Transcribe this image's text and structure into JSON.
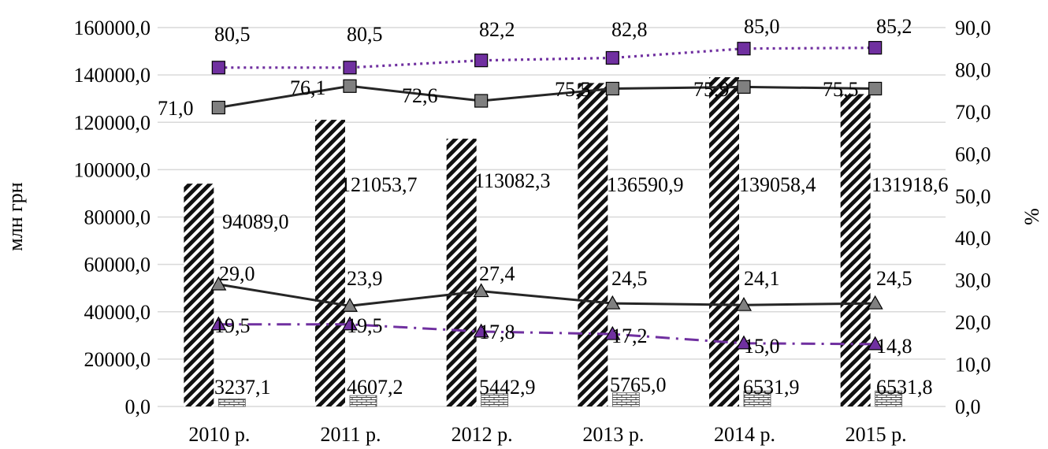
{
  "chart_data": {
    "type": "bar",
    "categories": [
      "2010 р.",
      "2011 р.",
      "2012 р.",
      "2013 р.",
      "2014 р.",
      "2015 р."
    ],
    "y_left": {
      "label": "млн грн",
      "ylim": [
        0,
        160000
      ],
      "ticks": [
        "0,0",
        "20000,0",
        "40000,0",
        "60000,0",
        "80000,0",
        "100000,0",
        "120000,0",
        "140000,0",
        "160000,0"
      ]
    },
    "y_right": {
      "label": "%",
      "ylim": [
        0,
        90
      ],
      "ticks": [
        "0,0",
        "10,0",
        "20,0",
        "30,0",
        "40,0",
        "50,0",
        "60,0",
        "70,0",
        "80,0",
        "90,0"
      ]
    },
    "bars": [
      {
        "axis": "left",
        "pattern": "diagonal-hatch",
        "values": [
          94089.0,
          121053.7,
          113082.3,
          136590.9,
          139058.4,
          131918.6
        ],
        "labels": [
          "94089,0",
          "121053,7",
          "113082,3",
          "136590,9",
          "139058,4",
          "131918,6"
        ]
      },
      {
        "axis": "left",
        "pattern": "brick",
        "values": [
          3237.1,
          4607.2,
          5442.9,
          5765.0,
          6531.9,
          6531.8
        ],
        "labels": [
          "3237,1",
          "4607,2",
          "5442,9",
          "5765,0",
          "6531,9",
          "6531,8"
        ]
      }
    ],
    "lines": [
      {
        "axis": "right",
        "style": "dotted",
        "color": "#7030a0",
        "marker": "square",
        "values": [
          80.5,
          80.5,
          82.2,
          82.8,
          85.0,
          85.2
        ],
        "labels": [
          "80,5",
          "80,5",
          "82,2",
          "82,8",
          "85,0",
          "85,2"
        ]
      },
      {
        "axis": "right",
        "style": "solid",
        "color": "#262626",
        "marker": "square",
        "values": [
          71.0,
          76.1,
          72.6,
          75.5,
          75.9,
          75.5
        ],
        "labels": [
          "71,0",
          "76,1",
          "72,6",
          "75,5",
          "75,9",
          "75,5"
        ]
      },
      {
        "axis": "right",
        "style": "solid",
        "color": "#262626",
        "marker": "triangle",
        "values": [
          29.0,
          23.9,
          27.4,
          24.5,
          24.1,
          24.5
        ],
        "labels": [
          "29,0",
          "23,9",
          "27,4",
          "24,5",
          "24,1",
          "24,5"
        ]
      },
      {
        "axis": "right",
        "style": "dash-dot",
        "color": "#7030a0",
        "marker": "triangle",
        "values": [
          19.5,
          19.5,
          17.8,
          17.2,
          15.0,
          14.8
        ],
        "labels": [
          "19,5",
          "19,5",
          "17,8",
          "17,2",
          "15,0",
          "14,8"
        ]
      }
    ],
    "grid": true,
    "legend": "none"
  }
}
